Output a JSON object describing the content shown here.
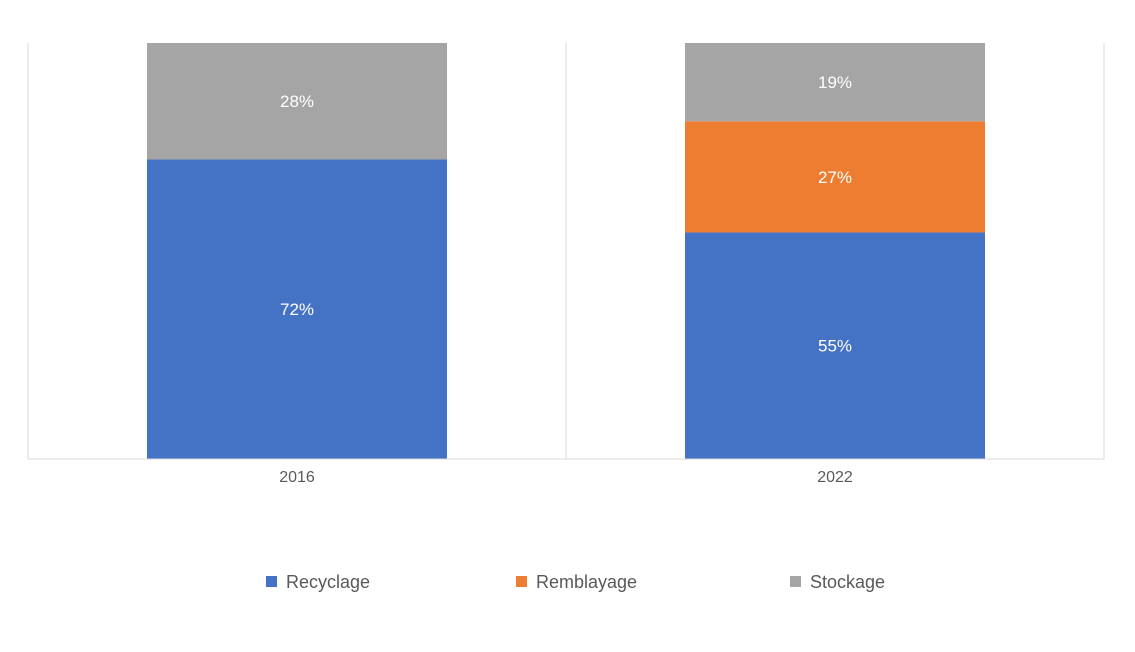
{
  "chart_data": {
    "type": "bar",
    "stacked": true,
    "categories": [
      "2016",
      "2022"
    ],
    "series": [
      {
        "name": "Recyclage",
        "values": [
          72,
          55
        ],
        "color": "#4472C4"
      },
      {
        "name": "Remblayage",
        "values": [
          0,
          27
        ],
        "color": "#ED7D31"
      },
      {
        "name": "Stockage",
        "values": [
          28,
          19
        ],
        "color": "#A5A5A5"
      }
    ],
    "value_suffix": "%",
    "title": "",
    "xlabel": "",
    "ylabel": "",
    "ylim": [
      0,
      100
    ],
    "grid": "vertical category separators",
    "legend_position": "bottom"
  }
}
